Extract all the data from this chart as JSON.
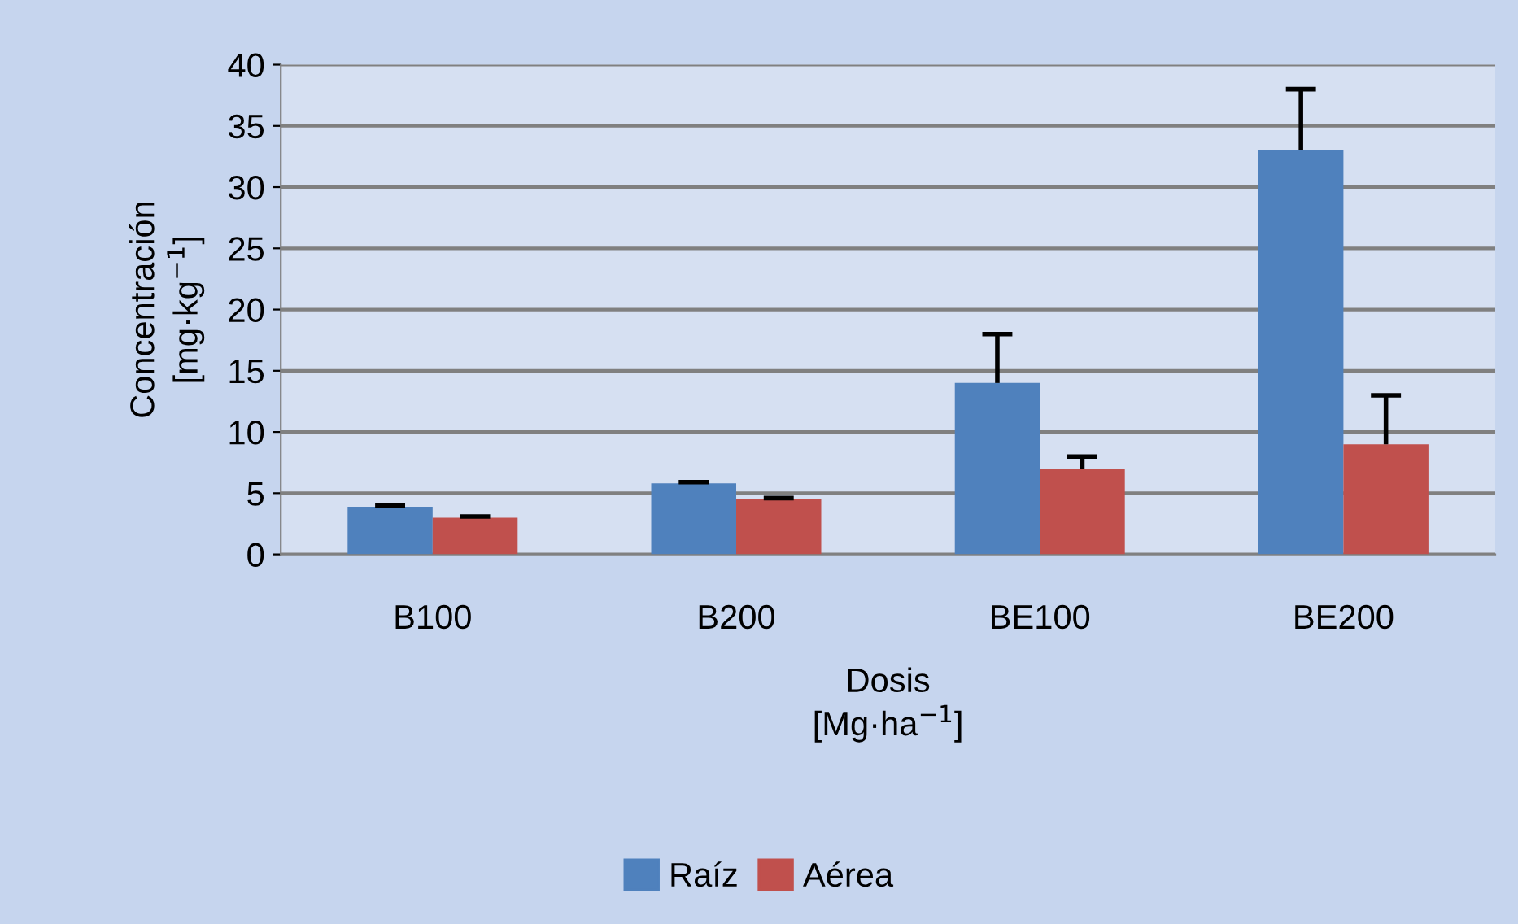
{
  "chart_data": {
    "type": "bar",
    "xlabel": "Dosis\n[Mg·ha$^{−1}$]",
    "ylabel": "Concentración\n[mg·kg$^{−1}$]",
    "categories": [
      "B100",
      "B200",
      "BE100",
      "BE200"
    ],
    "series": [
      {
        "name": "Raíz",
        "color": "#4f81bd",
        "values": [
          3.9,
          5.8,
          14,
          33
        ],
        "errors": [
          [
            3.9,
            4.0
          ],
          [
            5.8,
            5.9
          ],
          [
            14,
            18
          ],
          [
            33,
            38
          ]
        ]
      },
      {
        "name": "Aérea",
        "color": "#c0504d",
        "values": [
          3.0,
          4.5,
          7,
          9
        ],
        "errors": [
          [
            3.0,
            3.1
          ],
          [
            4.5,
            4.6
          ],
          [
            7,
            8
          ],
          [
            9,
            13
          ]
        ]
      }
    ],
    "ylim": [
      0,
      40
    ],
    "yticks": [
      0,
      5,
      10,
      15,
      20,
      25,
      30,
      35,
      40
    ],
    "grid": "y",
    "legend": "bottom"
  }
}
